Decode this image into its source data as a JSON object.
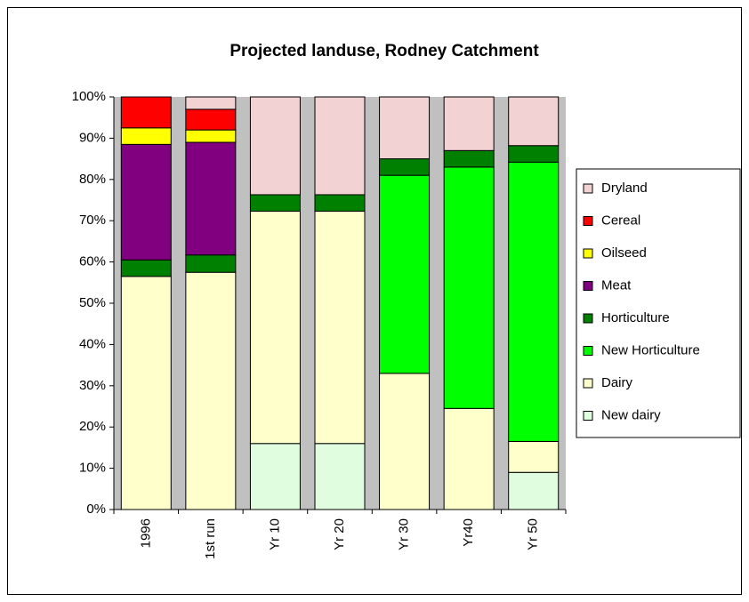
{
  "chart_data": {
    "type": "stacked_bar",
    "title": "Projected landuse, Rodney Catchment",
    "categories": [
      "1996",
      "1st run",
      "Yr 10",
      "Yr 20",
      "Yr 30",
      "Yr40",
      "Yr 50"
    ],
    "series": [
      {
        "name": "New dairy",
        "color": "#e0fde0",
        "values": [
          0,
          0,
          16,
          16,
          0,
          0,
          9
        ]
      },
      {
        "name": "Dairy",
        "color": "#ffffcc",
        "values": [
          56.5,
          57.5,
          56.3,
          56.3,
          33,
          24.5,
          7.5
        ]
      },
      {
        "name": "New Horticulture",
        "color": "#00ff00",
        "values": [
          0,
          0,
          0,
          0,
          48,
          58.5,
          67.7
        ]
      },
      {
        "name": "Horticulture",
        "color": "#008000",
        "values": [
          4,
          4.2,
          4,
          4,
          4,
          4,
          4
        ]
      },
      {
        "name": "Meat",
        "color": "#800080",
        "values": [
          28,
          27.3,
          0,
          0,
          0,
          0,
          0
        ]
      },
      {
        "name": "Oilseed",
        "color": "#ffff00",
        "values": [
          4,
          3,
          0,
          0,
          0,
          0,
          0
        ]
      },
      {
        "name": "Cereal",
        "color": "#ff0000",
        "values": [
          7.5,
          5,
          0,
          0,
          0,
          0,
          0
        ]
      },
      {
        "name": "Dryland",
        "color": "#f2d2d2",
        "values": [
          0,
          3,
          23.7,
          23.7,
          15,
          13,
          11.8
        ]
      }
    ],
    "ylim": [
      0,
      100
    ],
    "yticks": [
      {
        "value": 0,
        "label": "0%"
      },
      {
        "value": 10,
        "label": "10%"
      },
      {
        "value": 20,
        "label": "20%"
      },
      {
        "value": 30,
        "label": "30%"
      },
      {
        "value": 40,
        "label": "40%"
      },
      {
        "value": 50,
        "label": "50%"
      },
      {
        "value": 60,
        "label": "60%"
      },
      {
        "value": 70,
        "label": "70%"
      },
      {
        "value": 80,
        "label": "80%"
      },
      {
        "value": 90,
        "label": "90%"
      },
      {
        "value": 100,
        "label": "100%"
      }
    ],
    "legend": "right",
    "plot_background": "#c0c0c0"
  }
}
